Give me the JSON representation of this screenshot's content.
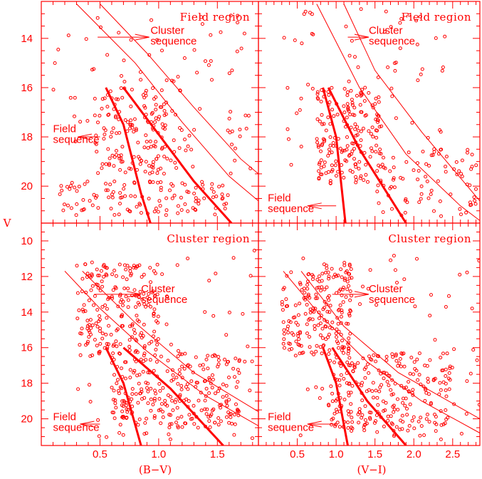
{
  "chart_data": {
    "type": "scatter",
    "y_axis_label": "V",
    "y_limits": [
      9.0,
      21.5
    ],
    "colors": {
      "points": "#ff0000",
      "frame": "#ff0000"
    },
    "panels": [
      {
        "id": "bv-field",
        "title": "Field region",
        "x_axis_label": "(B−V)",
        "x_limits": [
          0.0,
          1.85
        ],
        "y_limits": [
          12.5,
          21.5
        ],
        "x_ticks": [
          0.5,
          1.0,
          1.5
        ],
        "y_ticks": [
          14,
          16,
          18,
          20
        ],
        "annotations": [
          {
            "text": [
              "Cluster",
              "sequence"
            ],
            "text_at": [
              0.93,
              13.9
            ],
            "arrow_from": [
              0.48,
              13.95
            ],
            "arrow_to": [
              0.92,
              13.95
            ]
          },
          {
            "text": [
              "Field",
              "sequence"
            ],
            "text_at": [
              0.1,
              17.9
            ],
            "arrow_from": [
              0.5,
              18.0
            ],
            "arrow_to": [
              0.31,
              18.0
            ]
          }
        ],
        "lines": [
          {
            "style": "thick",
            "points": [
              [
                0.55,
                16.0
              ],
              [
                0.7,
                17.5
              ],
              [
                0.85,
                20.3
              ],
              [
                0.93,
                21.5
              ]
            ]
          },
          {
            "style": "thick",
            "points": [
              [
                0.7,
                16.0
              ],
              [
                1.0,
                17.9
              ],
              [
                1.3,
                19.8
              ],
              [
                1.62,
                21.5
              ]
            ]
          },
          {
            "style": "thin",
            "points": [
              [
                0.3,
                12.6
              ],
              [
                0.8,
                15.0
              ],
              [
                1.2,
                17.4
              ],
              [
                1.6,
                19.6
              ],
              [
                1.85,
                20.6
              ]
            ]
          },
          {
            "style": "thin",
            "points": [
              [
                0.5,
                12.6
              ],
              [
                0.9,
                14.6
              ],
              [
                1.3,
                16.8
              ],
              [
                1.7,
                18.9
              ],
              [
                1.85,
                19.5
              ]
            ]
          }
        ],
        "point_density": [
          {
            "n": 150,
            "x": [
              0.45,
              1.2
            ],
            "y": [
              16.0,
              19.5
            ]
          },
          {
            "n": 120,
            "x": [
              0.15,
              1.6
            ],
            "y": [
              19.8,
              21.2
            ]
          },
          {
            "n": 90,
            "x": [
              0.1,
              1.8
            ],
            "y": [
              13.0,
              19.5
            ]
          }
        ]
      },
      {
        "id": "vi-field",
        "title": "Field region",
        "x_axis_label": "(V−I)",
        "x_limits": [
          0.0,
          2.85
        ],
        "y_limits": [
          12.5,
          21.5
        ],
        "x_ticks": [
          0.5,
          1.0,
          1.5,
          2.0,
          2.5
        ],
        "y_ticks": [
          14,
          16,
          18,
          20
        ],
        "annotations": [
          {
            "text": [
              "Cluster",
              "sequence"
            ],
            "text_at": [
              1.42,
              13.9
            ],
            "arrow_from": [
              1.15,
              13.95
            ],
            "arrow_to": [
              1.42,
              13.95
            ]
          },
          {
            "text": [
              "Field",
              "sequence"
            ],
            "text_at": [
              0.12,
              20.7
            ],
            "arrow_from": [
              1.0,
              20.8
            ],
            "arrow_to": [
              0.63,
              20.8
            ]
          }
        ],
        "lines": [
          {
            "style": "thick",
            "points": [
              [
                0.83,
                16.0
              ],
              [
                1.0,
                18.0
              ],
              [
                1.12,
                21.5
              ]
            ]
          },
          {
            "style": "thick",
            "points": [
              [
                0.9,
                16.0
              ],
              [
                1.3,
                18.5
              ],
              [
                1.9,
                21.5
              ]
            ]
          },
          {
            "style": "thin",
            "points": [
              [
                0.75,
                12.6
              ],
              [
                1.3,
                16.0
              ],
              [
                1.9,
                18.7
              ],
              [
                2.6,
                20.8
              ],
              [
                2.85,
                21.4
              ]
            ]
          },
          {
            "style": "thin",
            "points": [
              [
                1.1,
                12.6
              ],
              [
                1.5,
                15.3
              ],
              [
                2.1,
                17.8
              ],
              [
                2.85,
                20.6
              ]
            ]
          }
        ],
        "point_density": [
          {
            "n": 180,
            "x": [
              0.75,
              1.6
            ],
            "y": [
              16.0,
              20.0
            ]
          },
          {
            "n": 80,
            "x": [
              1.5,
              2.85
            ],
            "y": [
              18.5,
              21.3
            ]
          },
          {
            "n": 70,
            "x": [
              0.3,
              2.4
            ],
            "y": [
              12.8,
              19.5
            ]
          }
        ]
      },
      {
        "id": "bv-cluster",
        "title": "Cluster region",
        "x_axis_label": "(B−V)",
        "x_limits": [
          0.0,
          1.85
        ],
        "y_limits": [
          9.0,
          21.5
        ],
        "x_ticks": [
          0.5,
          1.0,
          1.5
        ],
        "y_ticks": [
          10,
          12,
          14,
          16,
          18,
          20
        ],
        "annotations": [
          {
            "text": [
              "Cluster",
              "sequence"
            ],
            "text_at": [
              0.85,
              13.0
            ],
            "arrow_from": [
              0.45,
              13.0
            ],
            "arrow_to": [
              0.85,
              13.0
            ]
          },
          {
            "text": [
              "Field",
              "sequence"
            ],
            "text_at": [
              0.1,
              20.2
            ],
            "arrow_from": [
              0.5,
              20.3
            ],
            "arrow_to": [
              0.33,
              20.3
            ]
          }
        ],
        "lines": [
          {
            "style": "thick",
            "points": [
              [
                0.55,
                16.0
              ],
              [
                0.7,
                18.0
              ],
              [
                0.85,
                21.5
              ]
            ]
          },
          {
            "style": "thick",
            "points": [
              [
                0.7,
                16.0
              ],
              [
                1.1,
                18.3
              ],
              [
                1.55,
                21.5
              ]
            ]
          },
          {
            "style": "thin",
            "points": [
              [
                0.2,
                11.7
              ],
              [
                0.5,
                13.8
              ],
              [
                0.9,
                16.2
              ],
              [
                1.4,
                18.7
              ],
              [
                1.85,
                20.4
              ]
            ]
          },
          {
            "style": "thin",
            "points": [
              [
                0.35,
                11.7
              ],
              [
                0.8,
                14.6
              ],
              [
                1.3,
                17.4
              ],
              [
                1.85,
                19.6
              ]
            ]
          }
        ],
        "point_density": [
          {
            "n": 200,
            "x": [
              0.3,
              1.0
            ],
            "y": [
              11.3,
              16.5
            ]
          },
          {
            "n": 250,
            "x": [
              0.6,
              1.7
            ],
            "y": [
              16.3,
              20.5
            ]
          },
          {
            "n": 70,
            "x": [
              0.3,
              1.85
            ],
            "y": [
              10.5,
              21.2
            ]
          }
        ]
      },
      {
        "id": "vi-cluster",
        "title": "Cluster region",
        "x_axis_label": "(V−I)",
        "x_limits": [
          0.0,
          2.85
        ],
        "y_limits": [
          9.0,
          21.5
        ],
        "x_ticks": [
          0.5,
          1.0,
          1.5,
          2.0,
          2.5
        ],
        "y_ticks": [
          10,
          12,
          14,
          16,
          18,
          20
        ],
        "annotations": [
          {
            "text": [
              "Cluster",
              "sequence"
            ],
            "text_at": [
              1.42,
              13.0
            ],
            "arrow_from": [
              0.95,
              13.0
            ],
            "arrow_to": [
              1.42,
              13.0
            ]
          },
          {
            "text": [
              "Field",
              "sequence"
            ],
            "text_at": [
              0.12,
              20.2
            ],
            "arrow_from": [
              1.0,
              20.3
            ],
            "arrow_to": [
              0.63,
              20.3
            ]
          }
        ],
        "lines": [
          {
            "style": "thick",
            "points": [
              [
                0.83,
                16.0
              ],
              [
                1.0,
                18.0
              ],
              [
                1.15,
                21.5
              ]
            ]
          },
          {
            "style": "thick",
            "points": [
              [
                0.95,
                16.0
              ],
              [
                1.4,
                19.0
              ],
              [
                1.9,
                21.5
              ]
            ]
          },
          {
            "style": "thin",
            "points": [
              [
                0.32,
                11.7
              ],
              [
                0.8,
                14.2
              ],
              [
                1.4,
                16.8
              ],
              [
                2.1,
                19.0
              ],
              [
                2.85,
                20.8
              ]
            ]
          },
          {
            "style": "thin",
            "points": [
              [
                0.55,
                11.7
              ],
              [
                1.1,
                14.8
              ],
              [
                1.8,
                17.4
              ],
              [
                2.85,
                20.0
              ]
            ]
          }
        ],
        "point_density": [
          {
            "n": 200,
            "x": [
              0.3,
              1.2
            ],
            "y": [
              11.3,
              16.5
            ]
          },
          {
            "n": 250,
            "x": [
              0.9,
              2.5
            ],
            "y": [
              16.3,
              20.7
            ]
          },
          {
            "n": 70,
            "x": [
              0.3,
              2.85
            ],
            "y": [
              10.5,
              21.2
            ]
          }
        ]
      }
    ]
  }
}
